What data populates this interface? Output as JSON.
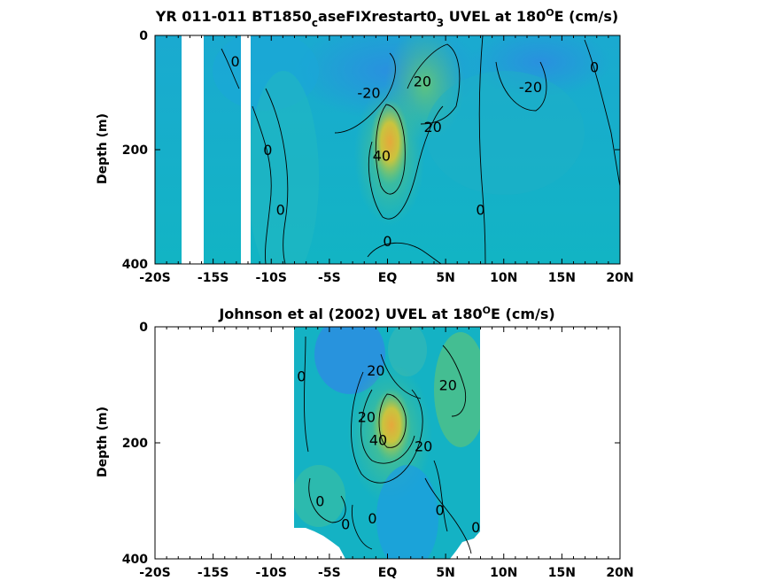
{
  "colors": {
    "cyan": "#12B3C8",
    "blue": "#2A8FE0",
    "green": "#4CC08A",
    "yellow": "#C9C43E",
    "orange": "#E6A83B"
  },
  "chart_data": [
    {
      "type": "heatmap",
      "title_main": "YR 011-011 BT1850",
      "title_sub1": "c",
      "title_mid": "aseFIXrestart0",
      "title_sub2": "3",
      "title_tail": " UVEL at 180",
      "title_sup": "O",
      "title_end": "E (cm/s)",
      "ylabel": "Depth (m)",
      "xlim": [
        -20,
        20
      ],
      "ylim": [
        400,
        0
      ],
      "x_ticks": [
        -20,
        -15,
        -10,
        -5,
        0,
        5,
        10,
        15,
        20
      ],
      "x_tick_labels": [
        "-20S",
        "-15S",
        "-10S",
        "-5S",
        "EQ",
        "5N",
        "10N",
        "15N",
        "20N"
      ],
      "y_ticks": [
        0,
        200,
        400
      ],
      "y_tick_labels": [
        "0",
        "200",
        "400"
      ],
      "contour_labels": [
        {
          "text": "0",
          "x": -13.1,
          "depth": 45
        },
        {
          "text": "-20",
          "x": -1.6,
          "depth": 100
        },
        {
          "text": "-20",
          "x": 12.3,
          "depth": 90
        },
        {
          "text": "0",
          "x": 17.8,
          "depth": 55
        },
        {
          "text": "20",
          "x": 3.0,
          "depth": 80
        },
        {
          "text": "20",
          "x": 3.9,
          "depth": 160
        },
        {
          "text": "40",
          "x": -0.5,
          "depth": 210
        },
        {
          "text": "0",
          "x": -10.3,
          "depth": 200
        },
        {
          "text": "0",
          "x": -9.2,
          "depth": 305
        },
        {
          "text": "0",
          "x": 8.0,
          "depth": 305
        },
        {
          "text": "0",
          "x": 0.0,
          "depth": 360
        }
      ]
    },
    {
      "type": "heatmap",
      "title_main": "Johnson et al (2002) UVEL at 180",
      "title_sup": "O",
      "title_end": "E (cm/s)",
      "ylabel": "Depth (m)",
      "xlim": [
        -20,
        20
      ],
      "ylim": [
        400,
        0
      ],
      "x_ticks": [
        -20,
        -15,
        -10,
        -5,
        0,
        5,
        10,
        15,
        20
      ],
      "x_tick_labels": [
        "-20S",
        "-15S",
        "-10S",
        "-5S",
        "EQ",
        "5N",
        "10N",
        "15N",
        "20N"
      ],
      "y_ticks": [
        0,
        200,
        400
      ],
      "y_tick_labels": [
        "0",
        "200",
        "400"
      ],
      "contour_labels": [
        {
          "text": "0",
          "x": -7.4,
          "depth": 85
        },
        {
          "text": "20",
          "x": -1.0,
          "depth": 75
        },
        {
          "text": "20",
          "x": 5.2,
          "depth": 100
        },
        {
          "text": "20",
          "x": -1.8,
          "depth": 155
        },
        {
          "text": "40",
          "x": -0.8,
          "depth": 195
        },
        {
          "text": "20",
          "x": 3.1,
          "depth": 205
        },
        {
          "text": "0",
          "x": -5.8,
          "depth": 300
        },
        {
          "text": "0",
          "x": -3.6,
          "depth": 340
        },
        {
          "text": "0",
          "x": -1.3,
          "depth": 330
        },
        {
          "text": "0",
          "x": 4.5,
          "depth": 315
        },
        {
          "text": "0",
          "x": 7.6,
          "depth": 345
        }
      ]
    }
  ]
}
